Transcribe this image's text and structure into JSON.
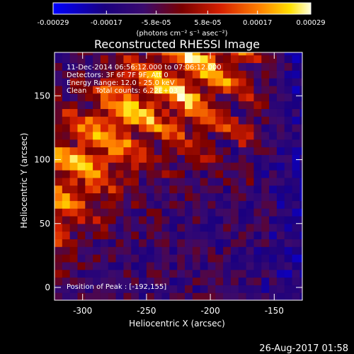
{
  "colorbar": {
    "tick_labels": [
      "-0.00029",
      "-0.00017",
      "-5.8e-05",
      "5.8e-05",
      "0.00017",
      "0.00029"
    ],
    "tick_values": [
      -0.00029,
      -0.00017,
      -5.8e-05,
      5.8e-05,
      0.00017,
      0.00029
    ],
    "range": [
      -0.00029,
      0.00029
    ],
    "unit_label": "(photons cm⁻² s⁻¹ asec⁻²)"
  },
  "annotations": {
    "time": "11-Dec-2014 06:56:12.000 to 07:06:12.000",
    "detectors": "Detectors: 3F 6F 7F 9F, Att 0",
    "energy": "Energy Range: 12.0 - 25.0 keV",
    "method": "Clean    Total counts: 6.22E+03",
    "peak": "Position of Peak : [-192,155]"
  },
  "footer_timestamp": "26-Aug-2017 01:58",
  "chart_data": {
    "type": "heatmap",
    "title": "Reconstructed RHESSI Image",
    "xlabel": "Heliocentric X (arcsec)",
    "ylabel": "Heliocentric Y (arcsec)",
    "xlim": [
      -322,
      -128
    ],
    "ylim": [
      -10,
      184
    ],
    "x_ticks": [
      -300,
      -250,
      -200,
      -150
    ],
    "y_ticks": [
      0,
      50,
      100,
      150
    ],
    "peak_position": [
      -192,
      155
    ],
    "colormap": "blue-purple-red-yellow-white",
    "grid": false
  }
}
